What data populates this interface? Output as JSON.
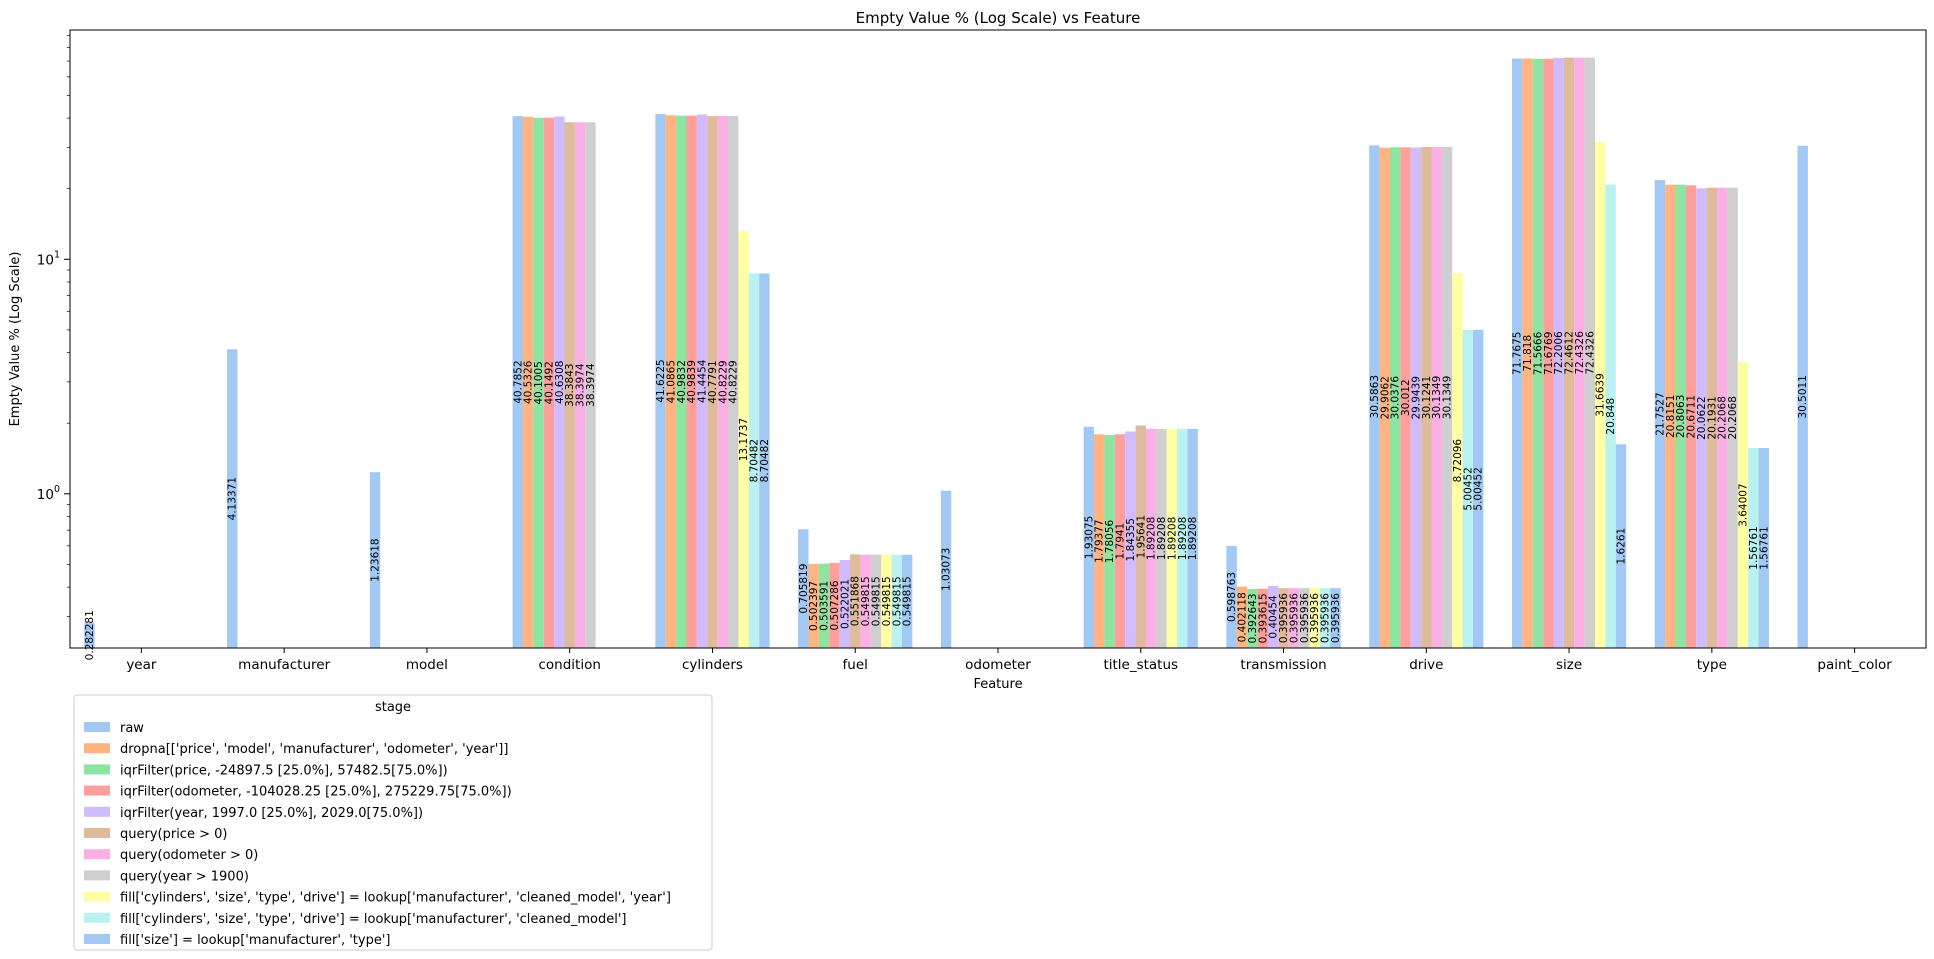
{
  "chart_data": {
    "type": "bar",
    "title": "Empty Value % (Log Scale) vs Feature",
    "xlabel": "Feature",
    "ylabel": "Empty Value % (Log Scale)",
    "yscale": "log",
    "ylim": [
      0.22,
      95
    ],
    "yticks": [
      {
        "value": 1,
        "base": "10",
        "exp": "0"
      },
      {
        "value": 10,
        "base": "10",
        "exp": "1"
      }
    ],
    "categories": [
      "year",
      "manufacturer",
      "model",
      "condition",
      "cylinders",
      "fuel",
      "odometer",
      "title_status",
      "transmission",
      "drive",
      "size",
      "type",
      "paint_color"
    ],
    "legend": {
      "title": "stage",
      "placement": "below-left"
    },
    "series": [
      {
        "name": "raw",
        "color": "#a1c9f4",
        "values": [
          0.282281,
          4.13371,
          1.23618,
          40.7852,
          41.6225,
          0.705819,
          1.03073,
          1.93075,
          0.598763,
          30.5863,
          71.7675,
          21.7527,
          30.5011
        ]
      },
      {
        "name": "dropna[['price', 'model', 'manufacturer', 'odometer', 'year']]",
        "color": "#ffb482",
        "values": [
          null,
          null,
          null,
          40.5326,
          41.0865,
          0.502397,
          null,
          1.79377,
          0.402118,
          29.9062,
          71.818,
          20.8151,
          null
        ]
      },
      {
        "name": "iqrFilter(price, -24897.5 [25.0%], 57482.5[75.0%])",
        "color": "#8de5a1",
        "values": [
          null,
          null,
          null,
          40.1005,
          40.9832,
          0.503591,
          null,
          1.78056,
          0.392643,
          30.0376,
          71.5666,
          20.8063,
          null
        ]
      },
      {
        "name": "iqrFilter(odometer, -104028.25 [25.0%], 275229.75[75.0%])",
        "color": "#ff9f9b",
        "values": [
          null,
          null,
          null,
          40.1492,
          40.9839,
          0.507286,
          null,
          1.7941,
          0.393615,
          30.012,
          71.6769,
          20.6711,
          null
        ]
      },
      {
        "name": "iqrFilter(year, 1997.0 [25.0%], 2029.0[75.0%])",
        "color": "#d0bbff",
        "values": [
          null,
          null,
          null,
          40.6308,
          41.4454,
          0.522021,
          null,
          1.84355,
          0.40454,
          29.9439,
          72.2006,
          20.0622,
          null
        ]
      },
      {
        "name": "query(price > 0)",
        "color": "#debb9b",
        "values": [
          null,
          null,
          null,
          38.3843,
          40.7791,
          0.551868,
          null,
          1.95641,
          0.395936,
          30.1241,
          72.4612,
          20.1931,
          null
        ]
      },
      {
        "name": "query(odometer > 0)",
        "color": "#fab0e4",
        "values": [
          null,
          null,
          null,
          38.3974,
          40.8229,
          0.549815,
          null,
          1.89208,
          0.395936,
          30.1349,
          72.4326,
          20.2068,
          null
        ]
      },
      {
        "name": "query(year > 1900)",
        "color": "#cfcfcf",
        "values": [
          null,
          null,
          null,
          38.3974,
          40.8229,
          0.549815,
          null,
          1.89208,
          0.395936,
          30.1349,
          72.4326,
          20.2068,
          null
        ]
      },
      {
        "name": "fill['cylinders', 'size', 'type', 'drive'] = lookup['manufacturer', 'cleaned_model', 'year']",
        "color": "#fffea3",
        "values": [
          null,
          null,
          null,
          null,
          13.1737,
          0.549815,
          null,
          1.89208,
          0.395936,
          8.72096,
          31.6639,
          3.64007,
          null
        ]
      },
      {
        "name": "fill['cylinders', 'size', 'type', 'drive'] = lookup['manufacturer', 'cleaned_model']",
        "color": "#b9f2f0",
        "values": [
          null,
          null,
          null,
          null,
          8.70482,
          0.549815,
          null,
          1.89208,
          0.395936,
          5.00452,
          20.848,
          1.56761,
          null
        ]
      },
      {
        "name": "fill['size'] = lookup['manufacturer', 'type']",
        "color": "#a1c9f4",
        "values": [
          null,
          null,
          null,
          null,
          8.70482,
          0.549815,
          null,
          1.89208,
          0.395936,
          5.00452,
          1.6261,
          1.56761,
          null
        ]
      }
    ],
    "data_labels": [
      [
        "0.282281",
        "",
        "",
        "",
        "",
        "",
        "",
        "",
        "",
        "",
        ""
      ],
      [
        "4.13371",
        "",
        "",
        "",
        "",
        "",
        "",
        "",
        "",
        "",
        ""
      ],
      [
        "1.23618",
        "",
        "",
        "",
        "",
        "",
        "",
        "",
        "",
        "",
        ""
      ],
      [
        "40.7852",
        "40.5326",
        "40.1005",
        "40.1492",
        "40.6308",
        "38.3843",
        "38.3974",
        "38.3974",
        "",
        "",
        ""
      ],
      [
        "41.6225",
        "41.0865",
        "40.9832",
        "40.9839",
        "41.4454",
        "40.7791",
        "40.8229",
        "40.8229",
        "13.1737",
        "8.70482",
        "8.70482"
      ],
      [
        "0.705819",
        "0.502397",
        "0.503591",
        "0.507286",
        "0.522021",
        "0.551868",
        "0.549815",
        "0.549815",
        "0.549815",
        "0.549815",
        "0.549815"
      ],
      [
        "1.03073",
        "",
        "",
        "",
        "",
        "",
        "",
        "",
        "",
        "",
        ""
      ],
      [
        "1.93075",
        "1.79377",
        "1.78056",
        "1.7941",
        "1.84355",
        "1.95641",
        "1.89208",
        "1.89208",
        "1.89208",
        "1.89208",
        "1.89208"
      ],
      [
        "0.598763",
        "0.402118",
        "0.392643",
        "0.393615",
        "0.40454",
        "0.395936",
        "0.395936",
        "0.395936",
        "0.395936",
        "0.395936",
        "0.395936"
      ],
      [
        "30.5863",
        "29.9062",
        "30.0376",
        "30.012",
        "29.9439",
        "30.1241",
        "30.1349",
        "30.1349",
        "8.72096",
        "5.00452",
        "5.00452"
      ],
      [
        "71.7675",
        "71.818",
        "71.5666",
        "71.6769",
        "72.2006",
        "72.4612",
        "72.4326",
        "72.4326",
        "31.6639",
        "20.848",
        "1.6261"
      ],
      [
        "21.7527",
        "20.8151",
        "20.8063",
        "20.6711",
        "20.0622",
        "20.1931",
        "20.2068",
        "20.2068",
        "3.64007",
        "1.56761",
        "1.56761"
      ],
      [
        "30.5011",
        "",
        "",
        "",
        "",
        "",
        "",
        "",
        "",
        "",
        ""
      ]
    ]
  }
}
